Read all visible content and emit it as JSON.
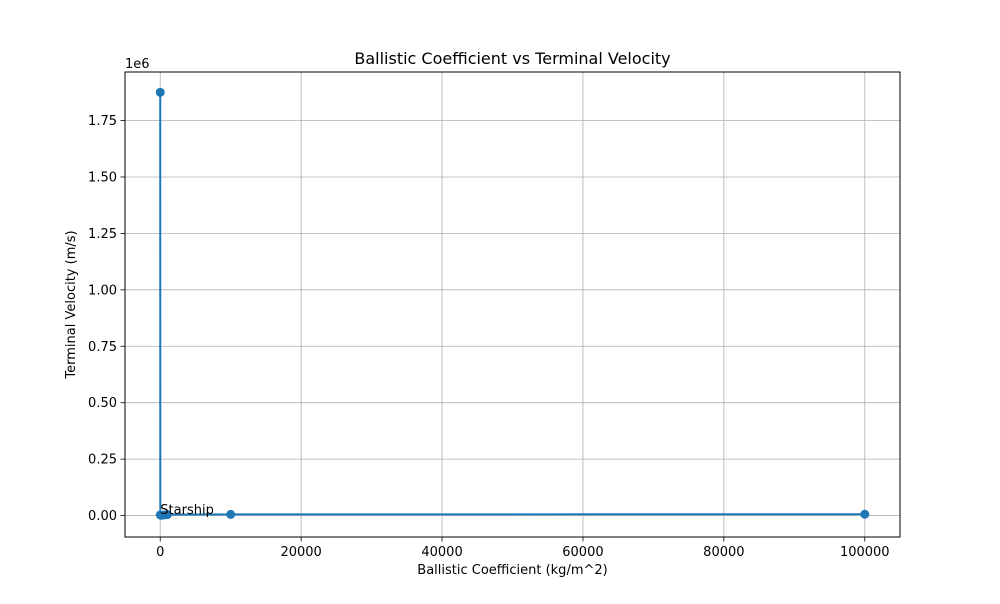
{
  "chart_data": {
    "type": "line",
    "title": "Ballistic Coefficient vs Terminal Velocity",
    "xlabel": "Ballistic Coefficient (kg/m^2)",
    "ylabel": "Terminal Velocity (m/s)",
    "y_offset_label": "1e6",
    "xlim": [
      -5000,
      105000
    ],
    "ylim": [
      -95000,
      1965000
    ],
    "xticks": [
      0,
      20000,
      40000,
      60000,
      80000,
      100000
    ],
    "xtick_labels": [
      "0",
      "20000",
      "40000",
      "60000",
      "80000",
      "100000"
    ],
    "yticks": [
      0,
      250000,
      500000,
      750000,
      1000000,
      1250000,
      1500000,
      1750000
    ],
    "ytick_labels": [
      "0.00",
      "0.25",
      "0.50",
      "0.75",
      "1.00",
      "1.25",
      "1.50",
      "1.75"
    ],
    "grid": true,
    "series": [
      {
        "color": "#1f77b4",
        "marker": "circle",
        "points": [
          {
            "x": 1,
            "y": 1875000
          },
          {
            "x": 10,
            "y": 3000
          },
          {
            "x": 100,
            "y": 1200
          },
          {
            "x": 500,
            "y": 2500
          },
          {
            "x": 1000,
            "y": 4000
          },
          {
            "x": 10000,
            "y": 5000
          },
          {
            "x": 100000,
            "y": 6000
          }
        ]
      }
    ],
    "annotations": [
      {
        "text": "Starship",
        "x": 10,
        "y": 3000
      }
    ]
  }
}
